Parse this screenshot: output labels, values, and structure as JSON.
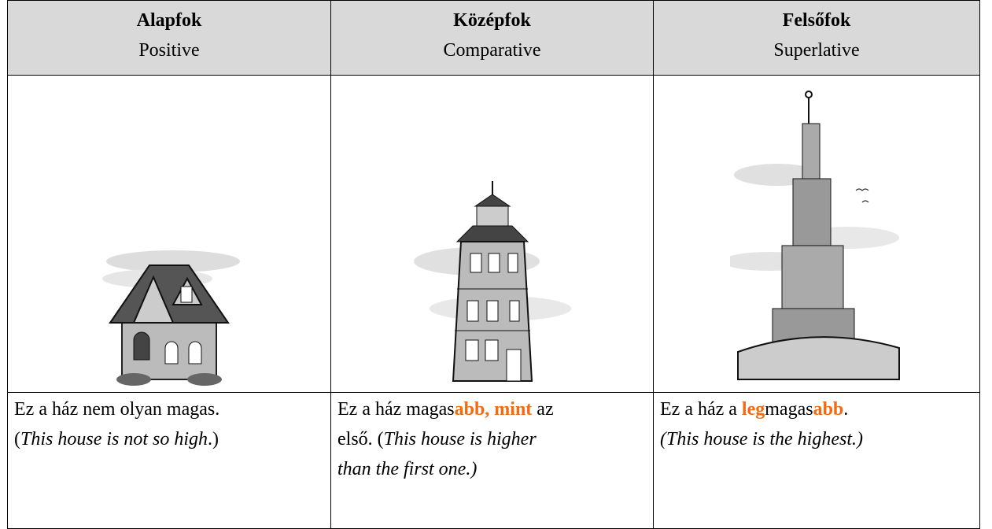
{
  "table": {
    "header": [
      {
        "title": "Alapfok",
        "subtitle": "Positive"
      },
      {
        "title": "Középfok",
        "subtitle": "Comparative"
      },
      {
        "title": "Felsőfok",
        "subtitle": "Superlative"
      }
    ],
    "captions": [
      [
        [
          {
            "text": "Ez a ház nem olyan magas.",
            "style": "normal"
          }
        ],
        [
          {
            "text": "(",
            "style": "normal"
          },
          {
            "text": "This house is not so high",
            "style": "italic"
          },
          {
            "text": ".)",
            "style": "normal"
          }
        ]
      ],
      [
        [
          {
            "text": "Ez a ház magas",
            "style": "normal"
          },
          {
            "text": "abb, mint",
            "style": "highlight"
          },
          {
            "text": " az",
            "style": "normal"
          }
        ],
        [
          {
            "text": "első. (",
            "style": "normal"
          },
          {
            "text": "This house is higher",
            "style": "italic"
          }
        ],
        [
          {
            "text": "than the first one.)",
            "style": "italic"
          }
        ]
      ],
      [
        [
          {
            "text": "Ez a ház a ",
            "style": "normal"
          },
          {
            "text": "leg",
            "style": "highlight"
          },
          {
            "text": "magas",
            "style": "normal"
          },
          {
            "text": "abb",
            "style": "highlight"
          },
          {
            "text": ".",
            "style": "normal"
          }
        ],
        [
          {
            "text": "(This house is the highest.)",
            "style": "italic"
          }
        ]
      ]
    ]
  }
}
